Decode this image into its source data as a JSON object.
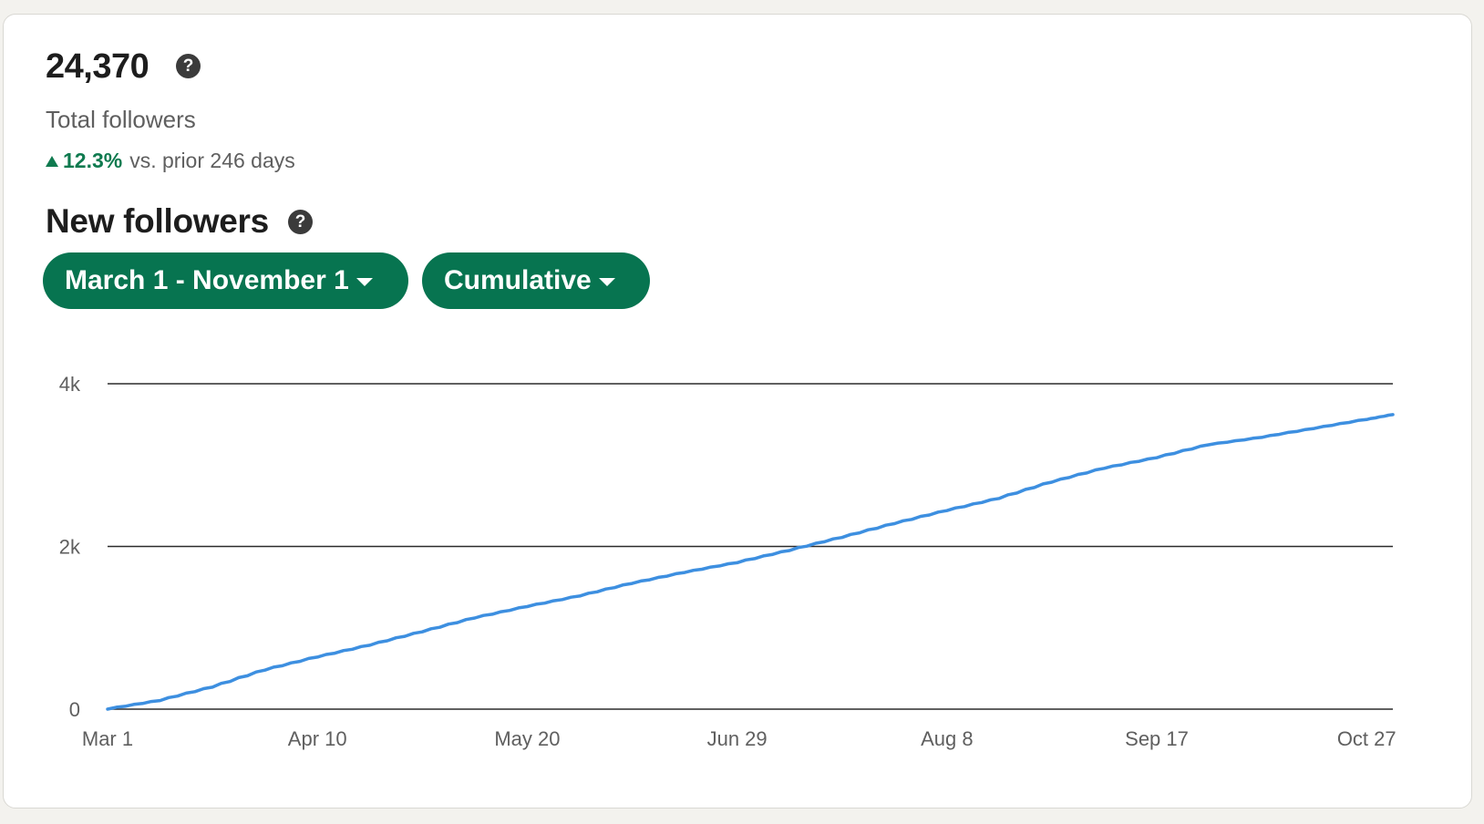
{
  "summary": {
    "total_followers_value": "24,370",
    "total_followers_label": "Total followers",
    "change_pct": "12.3%",
    "change_text": "vs. prior 246 days",
    "help_glyph": "?"
  },
  "section": {
    "title": "New followers",
    "help_glyph": "?"
  },
  "filters": {
    "date_range_label": "March 1 - November 1",
    "mode_label": "Cumulative"
  },
  "colors": {
    "accent_green": "#077450",
    "trend_green": "#0f7a4f",
    "line_blue": "#3d8fe0"
  },
  "icons": [
    "help-icon",
    "caret-down-icon",
    "trend-up-icon"
  ],
  "chart_data": {
    "type": "line",
    "x_tick_labels": [
      "Mar 1",
      "Apr 10",
      "May 20",
      "Jun 29",
      "Aug 8",
      "Sep 17",
      "Oct 27"
    ],
    "y_tick_labels": [
      "0",
      "2k",
      "4k"
    ],
    "y_ticks": [
      0,
      2000,
      4000
    ],
    "ylim": [
      0,
      4000
    ],
    "x_range_days": [
      0,
      245
    ],
    "grid": true,
    "series": [
      {
        "x": [
          0,
          10,
          20,
          30,
          40,
          50,
          60,
          70,
          80,
          90,
          100,
          110,
          120,
          130,
          140,
          150,
          160,
          170,
          180,
          190,
          200,
          210,
          220,
          230,
          240,
          245
        ],
        "values": [
          0,
          105,
          270,
          480,
          640,
          785,
          950,
          1120,
          1260,
          1390,
          1545,
          1680,
          1800,
          1950,
          2110,
          2280,
          2440,
          2590,
          2790,
          2960,
          3090,
          3250,
          3340,
          3450,
          3560,
          3620
        ]
      }
    ]
  }
}
